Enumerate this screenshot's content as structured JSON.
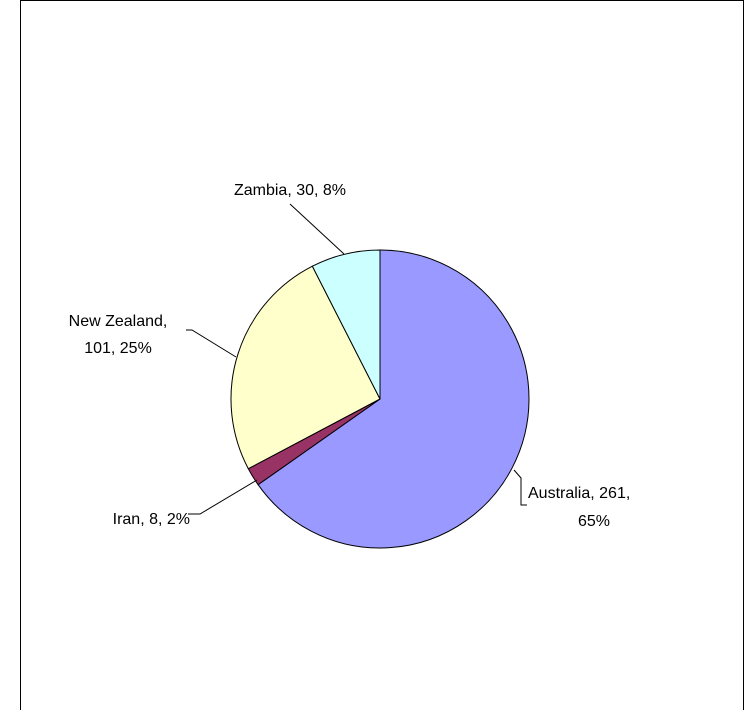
{
  "chart_data": {
    "type": "pie",
    "title": "",
    "slices": [
      {
        "label": "Australia",
        "value": 261,
        "percent": 65,
        "color": "#9999ff",
        "label_lines": [
          "Australia, 261,",
          "65%"
        ]
      },
      {
        "label": "Iran",
        "value": 8,
        "percent": 2,
        "color": "#993366",
        "label_lines": [
          "Iran, 8, 2%"
        ]
      },
      {
        "label": "New Zealand",
        "value": 101,
        "percent": 25,
        "color": "#ffffcc",
        "label_lines": [
          "New Zealand,",
          "101, 25%"
        ]
      },
      {
        "label": "Zambia",
        "value": 30,
        "percent": 8,
        "color": "#ccffff",
        "label_lines": [
          "Zambia, 30, 8%"
        ]
      }
    ],
    "start_angle_deg": 0,
    "direction": "clockwise",
    "legend": "none",
    "data_labels": "label, value, percent"
  }
}
